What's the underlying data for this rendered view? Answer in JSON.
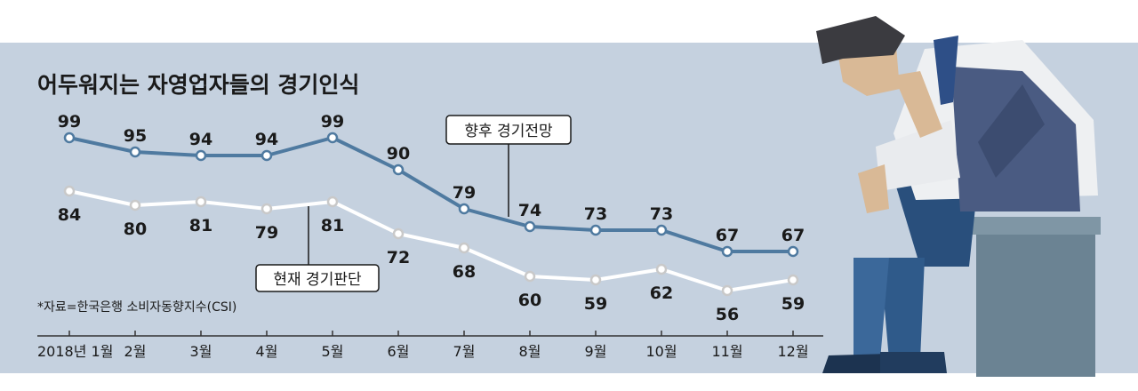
{
  "chart_data": {
    "type": "line",
    "title": "어두워지는 자영업자들의 경기인식",
    "source": "*자료=한국은행 소비자동향지수(CSI)",
    "categories": [
      "2018년 1월",
      "2월",
      "3월",
      "4월",
      "5월",
      "6월",
      "7월",
      "8월",
      "9월",
      "10월",
      "11월",
      "12월"
    ],
    "series": [
      {
        "name": "향후 경기전망",
        "values": [
          99,
          95,
          94,
          94,
          99,
          90,
          79,
          74,
          73,
          73,
          67,
          67
        ],
        "color": "#4f7aa0"
      },
      {
        "name": "현재 경기판단",
        "values": [
          84,
          80,
          81,
          79,
          81,
          72,
          68,
          60,
          59,
          62,
          56,
          59
        ],
        "color": "#ffffff"
      }
    ],
    "ylim": [
      50,
      105
    ],
    "grid": false,
    "legend": "inline labels"
  },
  "colors": {
    "panel_bg": "#c5d1df",
    "axis": "#333333",
    "text": "#1a1a1a"
  }
}
